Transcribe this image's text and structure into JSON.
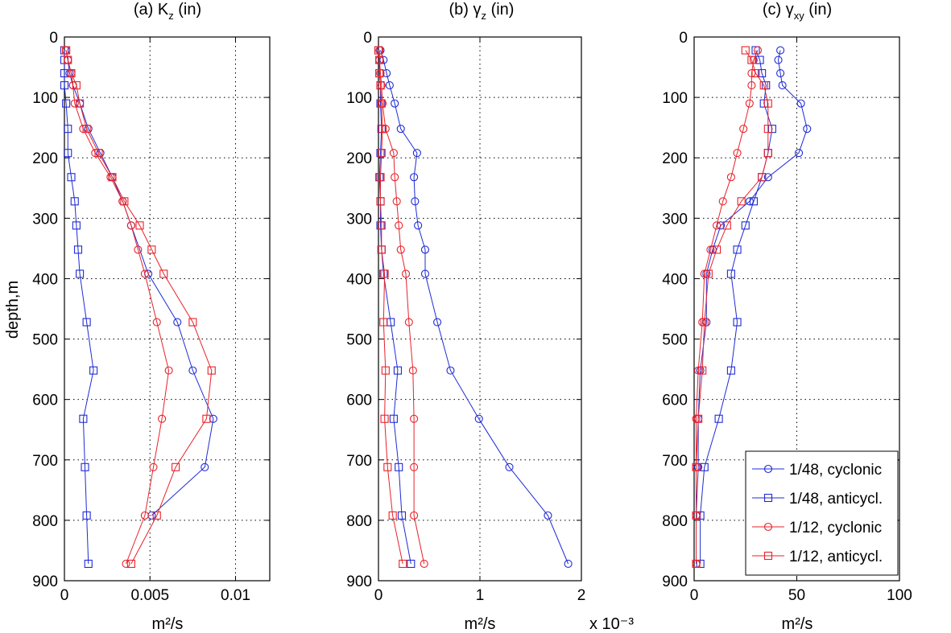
{
  "figure": {
    "ylabel": "depth,m",
    "xlabel_unit": "m²/s",
    "colors": {
      "cyclonic_1_48": "#1f2bd6",
      "anticycl_1_48": "#1f2bd6",
      "cyclonic_1_12": "#e8222a",
      "anticycl_1_12": "#e8222a"
    }
  },
  "legend": {
    "placement": "lower-right of panel (c)",
    "entries": [
      "1/48, cyclonic",
      "1/48, anticycl.",
      "1/12, cyclonic",
      "1/12, anticycl."
    ]
  },
  "panels": [
    {
      "title_pre": "(a) K",
      "title_sub": "z",
      "title_post": " (in)",
      "xlabel": "m²/s",
      "exponent_label": "",
      "xticks": [
        "0",
        "0.005",
        "0.01"
      ]
    },
    {
      "title_pre": "(b) γ",
      "title_sub": "z",
      "title_post": " (in)",
      "xlabel": "m²/s",
      "exponent_label": "x 10⁻³",
      "xticks": [
        "0",
        "1",
        "2"
      ]
    },
    {
      "title_pre": "(c) γ",
      "title_sub": "xy",
      "title_post": " (in)",
      "xlabel": "m²/s",
      "exponent_label": "",
      "xticks": [
        "0",
        "50",
        "100"
      ]
    }
  ],
  "chart_data": [
    {
      "type": "line",
      "title": "(a) Kz (in)",
      "xlabel": "m²/s",
      "ylabel": "depth,m",
      "xlim": [
        0,
        0.012
      ],
      "ylim": [
        900,
        0
      ],
      "y_reversed": true,
      "xticks": [
        0,
        0.005,
        0.01
      ],
      "yticks": [
        0,
        100,
        200,
        300,
        400,
        500,
        600,
        700,
        800,
        900
      ],
      "grid": true,
      "series": [
        {
          "name": "1/48, cyclonic",
          "marker": "circle",
          "color": "#1f2bd6",
          "x": [
            0.0001,
            0.0002,
            0.0003,
            0.0005,
            0.0009,
            0.0014,
            0.0021,
            0.0028,
            0.0034,
            0.0039,
            0.0049,
            0.0066,
            0.0075,
            0.0087,
            0.0082,
            0.0051
          ],
          "y": [
            22,
            38,
            60,
            80,
            110,
            152,
            192,
            232,
            272,
            312,
            392,
            472,
            552,
            632,
            712,
            792
          ]
        },
        {
          "name": "1/48, anticycl.",
          "marker": "square",
          "color": "#1f2bd6",
          "x": [
            0.0,
            0.0,
            0.0,
            0.0,
            0.0001,
            0.0002,
            0.0002,
            0.0004,
            0.0006,
            0.0007,
            0.0008,
            0.0009,
            0.0013,
            0.0017,
            0.0011,
            0.0012,
            0.0013,
            0.0014
          ],
          "y": [
            22,
            38,
            60,
            80,
            110,
            152,
            192,
            232,
            272,
            312,
            352,
            392,
            472,
            552,
            632,
            712,
            792,
            872
          ]
        },
        {
          "name": "1/12, cyclonic",
          "marker": "circle",
          "color": "#e8222a",
          "x": [
            0.0001,
            0.0002,
            0.0004,
            0.0005,
            0.0006,
            0.0011,
            0.0018,
            0.0027,
            0.0034,
            0.0039,
            0.0043,
            0.0047,
            0.0054,
            0.0061,
            0.0057,
            0.0052,
            0.0047,
            0.0036
          ],
          "y": [
            22,
            38,
            60,
            80,
            110,
            152,
            192,
            232,
            272,
            312,
            352,
            392,
            472,
            552,
            632,
            712,
            792,
            872
          ]
        },
        {
          "name": "1/12, anticycl.",
          "marker": "square",
          "color": "#e8222a",
          "x": [
            0.0001,
            0.0002,
            0.0004,
            0.0007,
            0.0009,
            0.0013,
            0.002,
            0.0028,
            0.0035,
            0.0044,
            0.0051,
            0.0058,
            0.0075,
            0.0086,
            0.0083,
            0.0065,
            0.0054,
            0.0039
          ],
          "y": [
            22,
            38,
            60,
            80,
            110,
            152,
            192,
            232,
            272,
            312,
            352,
            392,
            472,
            552,
            632,
            712,
            792,
            872
          ]
        }
      ]
    },
    {
      "type": "line",
      "title": "(b) γz (in)",
      "xlabel": "m²/s",
      "ylabel": "",
      "x_multiplier": "x 10⁻³",
      "xlim": [
        0,
        2
      ],
      "ylim": [
        900,
        0
      ],
      "y_reversed": true,
      "xticks": [
        0,
        1,
        2
      ],
      "yticks": [
        0,
        100,
        200,
        300,
        400,
        500,
        600,
        700,
        800,
        900
      ],
      "grid": true,
      "series": [
        {
          "name": "1/48, cyclonic",
          "marker": "circle",
          "color": "#1f2bd6",
          "x": [
            0.02,
            0.05,
            0.08,
            0.11,
            0.16,
            0.22,
            0.38,
            0.35,
            0.36,
            0.39,
            0.46,
            0.46,
            0.58,
            0.71,
            0.99,
            1.29,
            1.67,
            1.87
          ],
          "y": [
            22,
            38,
            60,
            80,
            110,
            152,
            192,
            232,
            272,
            312,
            352,
            392,
            472,
            552,
            632,
            712,
            792,
            872
          ]
        },
        {
          "name": "1/48, anticycl.",
          "marker": "square",
          "color": "#1f2bd6",
          "x": [
            0.0,
            0.01,
            0.01,
            0.02,
            0.02,
            0.03,
            0.02,
            0.01,
            0.02,
            0.02,
            0.03,
            0.05,
            0.12,
            0.19,
            0.15,
            0.2,
            0.23,
            0.32
          ],
          "y": [
            22,
            38,
            60,
            80,
            110,
            152,
            192,
            232,
            272,
            312,
            352,
            392,
            472,
            552,
            632,
            712,
            792,
            872
          ]
        },
        {
          "name": "1/12, cyclonic",
          "marker": "circle",
          "color": "#e8222a",
          "x": [
            0.01,
            0.01,
            0.02,
            0.03,
            0.04,
            0.07,
            0.15,
            0.16,
            0.18,
            0.2,
            0.22,
            0.27,
            0.3,
            0.34,
            0.35,
            0.35,
            0.35,
            0.45
          ],
          "y": [
            22,
            38,
            60,
            80,
            110,
            152,
            192,
            232,
            272,
            312,
            352,
            392,
            472,
            552,
            632,
            712,
            792,
            872
          ]
        },
        {
          "name": "1/12, anticycl.",
          "marker": "square",
          "color": "#e8222a",
          "x": [
            0.0,
            0.01,
            0.01,
            0.02,
            0.03,
            0.04,
            0.03,
            0.02,
            0.02,
            0.03,
            0.03,
            0.06,
            0.05,
            0.07,
            0.06,
            0.09,
            0.14,
            0.24
          ],
          "y": [
            22,
            38,
            60,
            80,
            110,
            152,
            192,
            232,
            272,
            312,
            352,
            392,
            472,
            552,
            632,
            712,
            792,
            872
          ]
        }
      ]
    },
    {
      "type": "line",
      "title": "(c) γxy (in)",
      "xlabel": "m²/s",
      "ylabel": "",
      "xlim": [
        0,
        100
      ],
      "ylim": [
        900,
        0
      ],
      "y_reversed": true,
      "xticks": [
        0,
        50,
        100
      ],
      "yticks": [
        0,
        100,
        200,
        300,
        400,
        500,
        600,
        700,
        800,
        900
      ],
      "grid": true,
      "series": [
        {
          "name": "1/48, cyclonic",
          "marker": "circle",
          "color": "#1f2bd6",
          "x": [
            42,
            41,
            42,
            43,
            52,
            55,
            51,
            36,
            27,
            13,
            9,
            6,
            6,
            3,
            2,
            2,
            1,
            1
          ],
          "y": [
            22,
            38,
            60,
            80,
            110,
            152,
            192,
            232,
            272,
            312,
            352,
            392,
            472,
            552,
            632,
            712,
            792,
            872
          ]
        },
        {
          "name": "1/48, anticycl.",
          "marker": "square",
          "color": "#1f2bd6",
          "x": [
            30,
            32,
            33,
            35,
            34,
            38,
            36,
            33,
            29,
            25,
            21,
            18,
            21,
            18,
            12,
            5,
            3,
            3
          ],
          "y": [
            22,
            38,
            60,
            80,
            110,
            152,
            192,
            232,
            272,
            312,
            352,
            392,
            472,
            552,
            632,
            712,
            792,
            872
          ]
        },
        {
          "name": "1/12, cyclonic",
          "marker": "circle",
          "color": "#e8222a",
          "x": [
            31,
            29,
            28,
            28,
            27,
            24,
            21,
            18,
            14,
            11,
            8,
            5,
            4,
            2,
            1,
            1,
            1,
            1
          ],
          "y": [
            22,
            38,
            60,
            80,
            110,
            152,
            192,
            232,
            272,
            312,
            352,
            392,
            472,
            552,
            632,
            712,
            792,
            872
          ]
        },
        {
          "name": "1/12, anticycl.",
          "marker": "square",
          "color": "#e8222a",
          "x": [
            25,
            28,
            30,
            34,
            36,
            36,
            36,
            33,
            23,
            16,
            11,
            7,
            5,
            4,
            2,
            1,
            1,
            1
          ],
          "y": [
            22,
            38,
            60,
            80,
            110,
            152,
            192,
            232,
            272,
            312,
            352,
            392,
            472,
            552,
            632,
            712,
            792,
            872
          ]
        }
      ]
    }
  ]
}
